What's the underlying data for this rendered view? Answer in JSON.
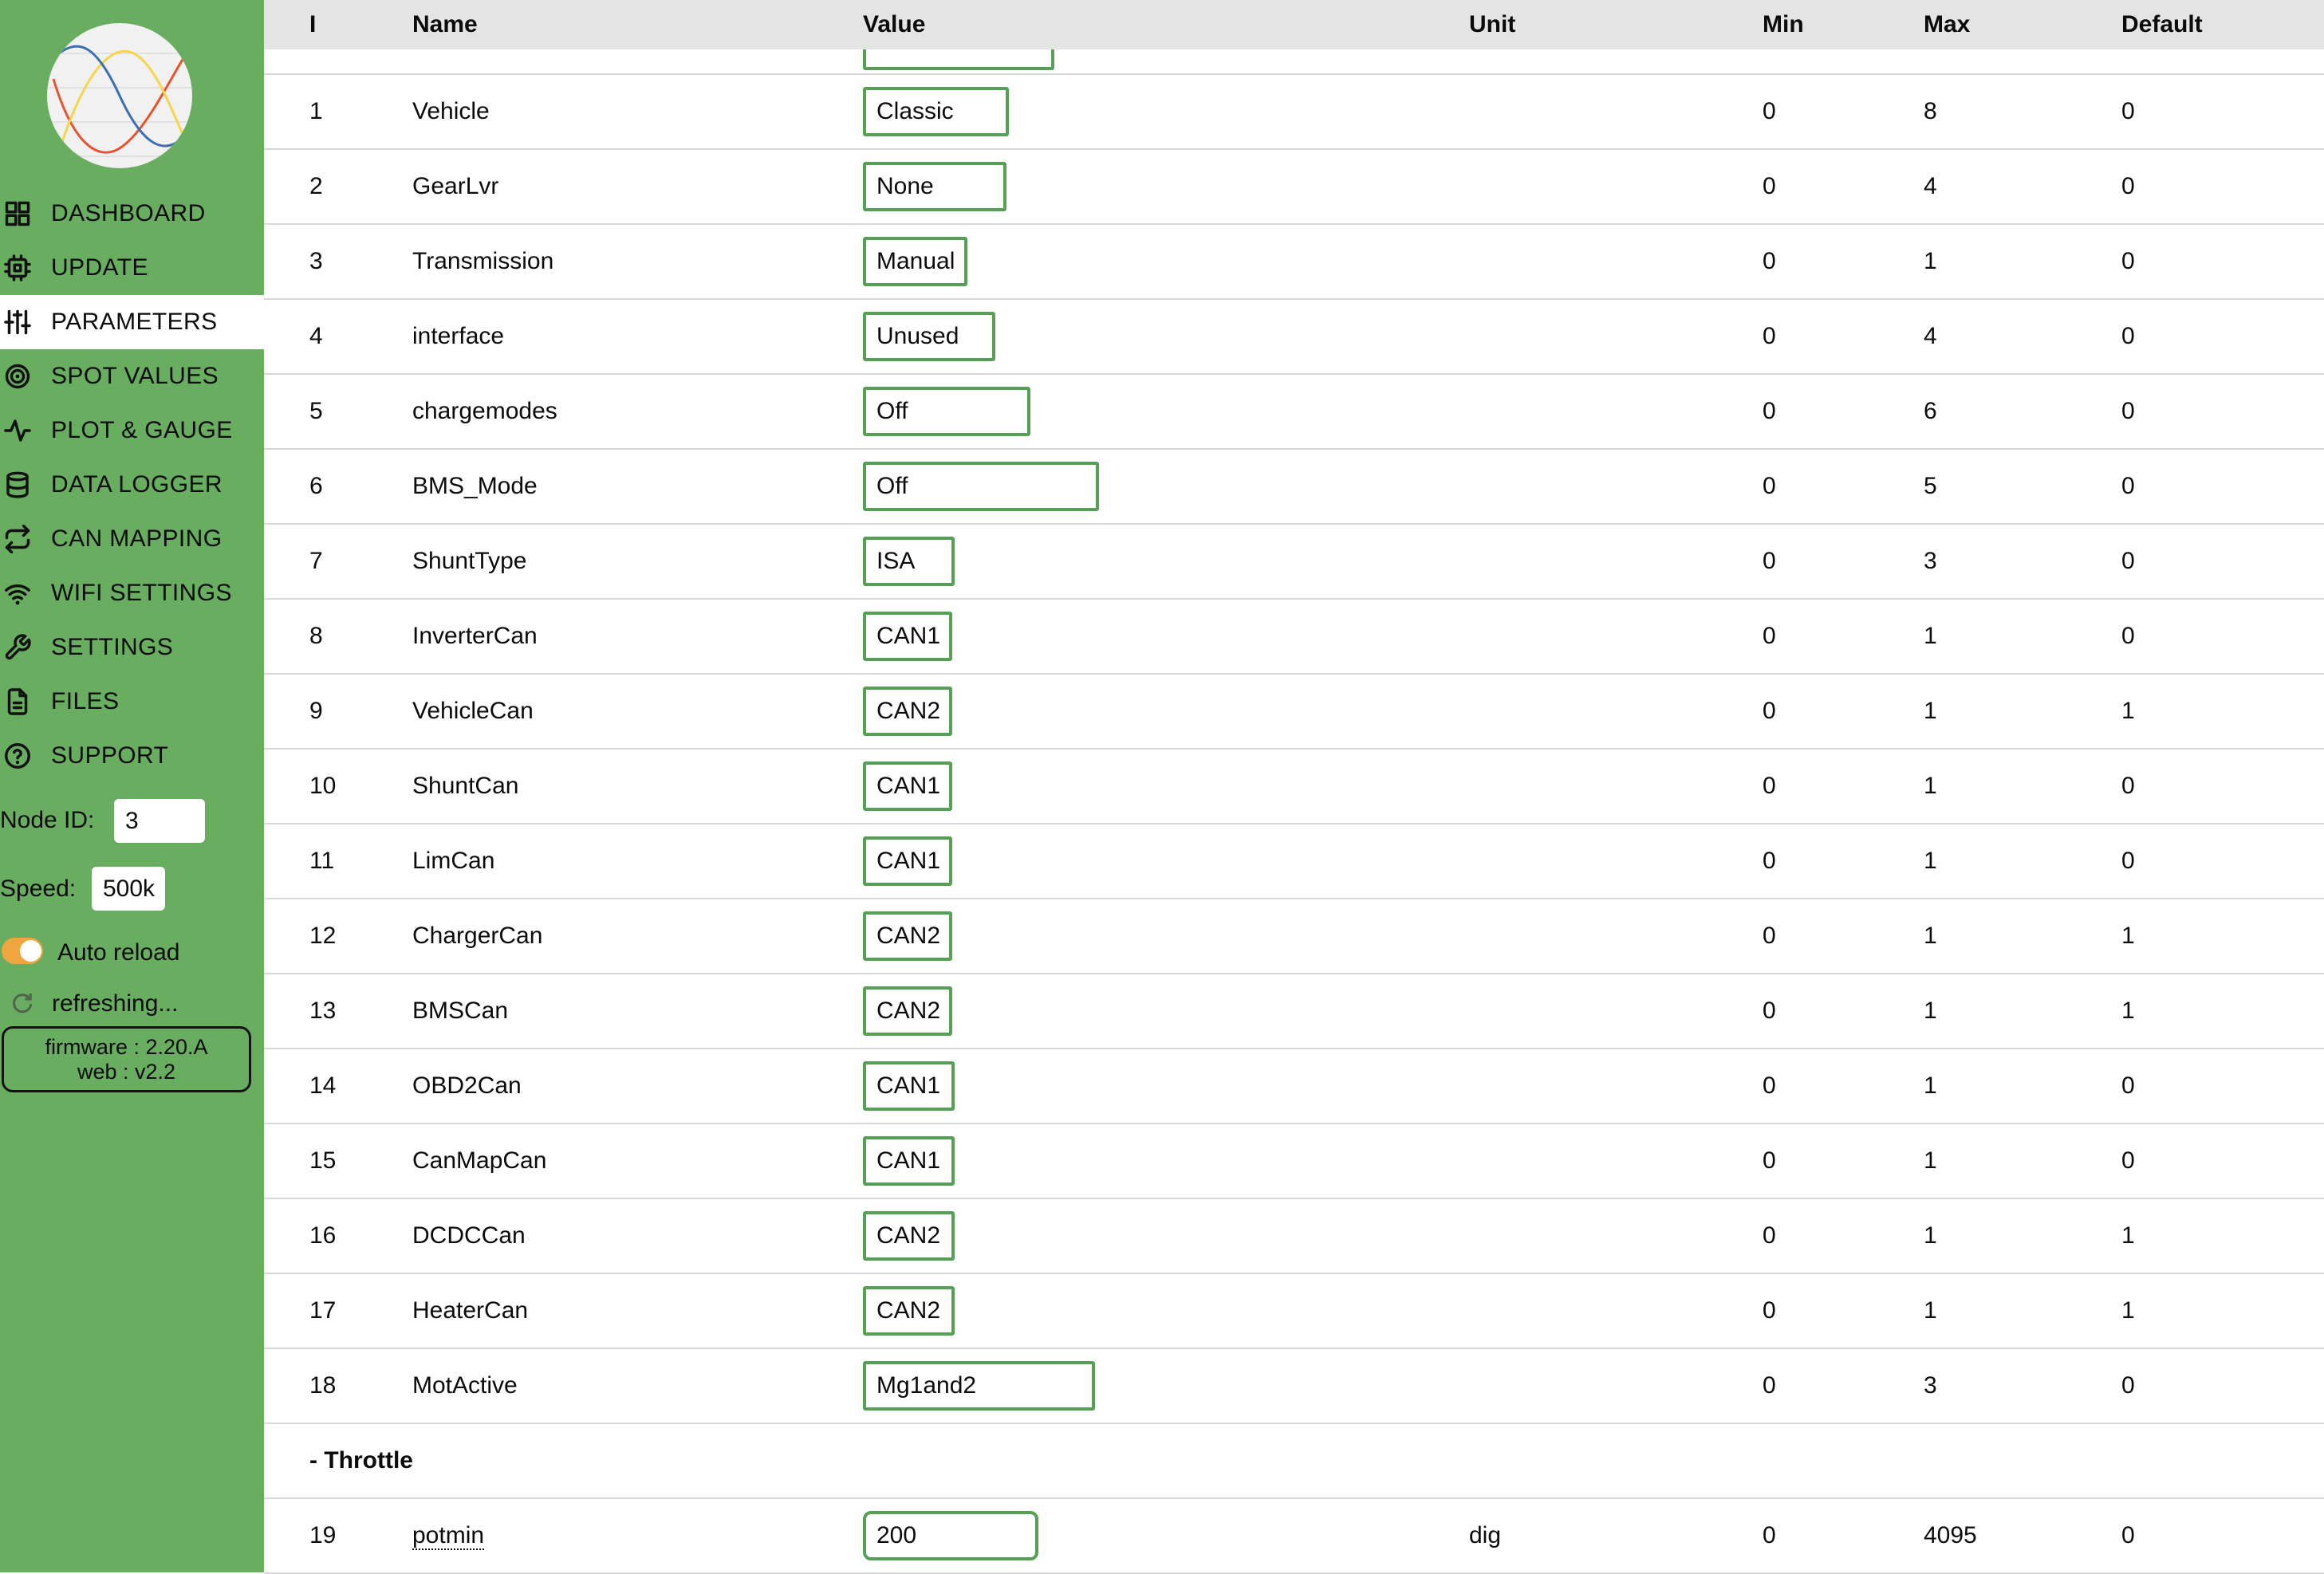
{
  "colors": {
    "sidebar_green": "#68ad60",
    "value_box_border": "#56a056",
    "header_bg": "#e4e4e4",
    "toggle_orange": "#efa63f",
    "divider": "#d7d7d7",
    "logo_blue": "#3d6db5",
    "logo_yellow": "#f6d54a",
    "logo_red": "#e8532e"
  },
  "sidebar": {
    "logo": "sine-waves-logo",
    "active_index": 2,
    "nav": [
      {
        "label": "DASHBOARD",
        "icon": "dashboard-icon"
      },
      {
        "label": "UPDATE",
        "icon": "cpu-icon"
      },
      {
        "label": "PARAMETERS",
        "icon": "sliders-icon"
      },
      {
        "label": "SPOT VALUES",
        "icon": "bullseye-icon"
      },
      {
        "label": "PLOT & GAUGE",
        "icon": "activity-icon"
      },
      {
        "label": "DATA LOGGER",
        "icon": "database-icon"
      },
      {
        "label": "CAN MAPPING",
        "icon": "repeat-icon"
      },
      {
        "label": "WIFI SETTINGS",
        "icon": "wifi-icon"
      },
      {
        "label": "SETTINGS",
        "icon": "wrench-icon"
      },
      {
        "label": "FILES",
        "icon": "file-icon"
      },
      {
        "label": "SUPPORT",
        "icon": "help-icon"
      }
    ],
    "node_id_label": "Node ID:",
    "node_id_value": "3",
    "speed_label": "Speed:",
    "speed_value": "500k",
    "auto_reload": {
      "label": "Auto reload",
      "state": "on"
    },
    "refreshing_label": "refreshing...",
    "firmware_line1": "firmware : 2.20.A",
    "firmware_line2": "web : v2.2"
  },
  "table": {
    "headers": {
      "id": "I",
      "name": "Name",
      "value": "Value",
      "unit": "Unit",
      "min": "Min",
      "max": "Max",
      "default": "Default"
    },
    "partial_top_row": {
      "value_box_width": 240
    },
    "rows": [
      {
        "id": "1",
        "name": "Vehicle",
        "value": "Classic",
        "value_width": 183,
        "unit": "",
        "min": "0",
        "max": "8",
        "default": "0"
      },
      {
        "id": "2",
        "name": "GearLvr",
        "value": "None",
        "value_width": 180,
        "unit": "",
        "min": "0",
        "max": "4",
        "default": "0"
      },
      {
        "id": "3",
        "name": "Transmission",
        "value": "Manual",
        "value_width": 131,
        "unit": "",
        "min": "0",
        "max": "1",
        "default": "0"
      },
      {
        "id": "4",
        "name": "interface",
        "value": "Unused",
        "value_width": 166,
        "unit": "",
        "min": "0",
        "max": "4",
        "default": "0"
      },
      {
        "id": "5",
        "name": "chargemodes",
        "value": "Off",
        "value_width": 210,
        "unit": "",
        "min": "0",
        "max": "6",
        "default": "0"
      },
      {
        "id": "6",
        "name": "BMS_Mode",
        "value": "Off",
        "value_width": 296,
        "unit": "",
        "min": "0",
        "max": "5",
        "default": "0"
      },
      {
        "id": "7",
        "name": "ShuntType",
        "value": "ISA",
        "value_width": 115,
        "unit": "",
        "min": "0",
        "max": "3",
        "default": "0"
      },
      {
        "id": "8",
        "name": "InverterCan",
        "value": "CAN1",
        "value_width": 112,
        "unit": "",
        "min": "0",
        "max": "1",
        "default": "0"
      },
      {
        "id": "9",
        "name": "VehicleCan",
        "value": "CAN2",
        "value_width": 112,
        "unit": "",
        "min": "0",
        "max": "1",
        "default": "1"
      },
      {
        "id": "10",
        "name": "ShuntCan",
        "value": "CAN1",
        "value_width": 112,
        "unit": "",
        "min": "0",
        "max": "1",
        "default": "0"
      },
      {
        "id": "11",
        "name": "LimCan",
        "value": "CAN1",
        "value_width": 112,
        "unit": "",
        "min": "0",
        "max": "1",
        "default": "0"
      },
      {
        "id": "12",
        "name": "ChargerCan",
        "value": "CAN2",
        "value_width": 112,
        "unit": "",
        "min": "0",
        "max": "1",
        "default": "1"
      },
      {
        "id": "13",
        "name": "BMSCan",
        "value": "CAN2",
        "value_width": 112,
        "unit": "",
        "min": "0",
        "max": "1",
        "default": "1"
      },
      {
        "id": "14",
        "name": "OBD2Can",
        "value": "CAN1",
        "value_width": 115,
        "unit": "",
        "min": "0",
        "max": "1",
        "default": "0"
      },
      {
        "id": "15",
        "name": "CanMapCan",
        "value": "CAN1",
        "value_width": 115,
        "unit": "",
        "min": "0",
        "max": "1",
        "default": "0"
      },
      {
        "id": "16",
        "name": "DCDCCan",
        "value": "CAN2",
        "value_width": 115,
        "unit": "",
        "min": "0",
        "max": "1",
        "default": "1"
      },
      {
        "id": "17",
        "name": "HeaterCan",
        "value": "CAN2",
        "value_width": 115,
        "unit": "",
        "min": "0",
        "max": "1",
        "default": "1"
      },
      {
        "id": "18",
        "name": "MotActive",
        "value": "Mg1and2",
        "value_width": 291,
        "unit": "",
        "min": "0",
        "max": "3",
        "default": "0"
      },
      {
        "section": "- Throttle"
      },
      {
        "id": "19",
        "name": "potmin",
        "value": "200",
        "value_width": 220,
        "unit": "dig",
        "min": "0",
        "max": "4095",
        "default": "0",
        "underline": true,
        "rounded": true
      }
    ]
  }
}
